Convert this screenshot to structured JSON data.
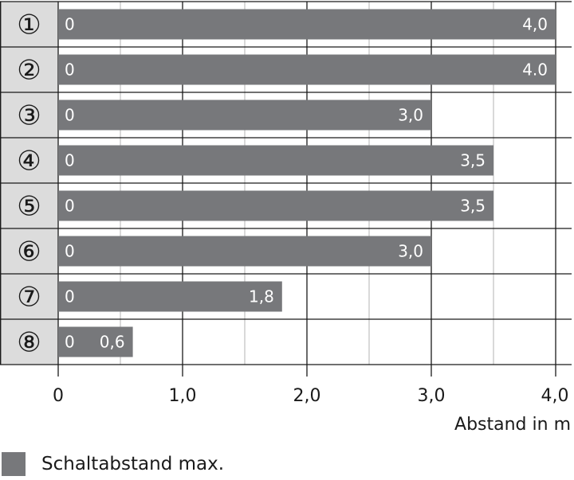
{
  "chart_data": {
    "type": "bar",
    "orientation": "horizontal",
    "categories": [
      "①",
      "②",
      "③",
      "④",
      "⑤",
      "⑥",
      "⑦",
      "⑧"
    ],
    "series": [
      {
        "name": "Schaltabstand max.",
        "values": [
          4.0,
          4.0,
          3.0,
          3.5,
          3.5,
          3.0,
          1.8,
          0.6
        ]
      }
    ],
    "bar_start_labels": [
      "0",
      "0",
      "0",
      "0",
      "0",
      "0",
      "0",
      "0"
    ],
    "bar_end_labels": [
      "4,0",
      "4.0",
      "3,0",
      "3,5",
      "3,5",
      "3,0",
      "1,8",
      "0,6"
    ],
    "x_ticks": [
      0,
      1,
      2,
      3,
      4
    ],
    "x_tick_labels": [
      "0",
      "1,0",
      "2,0",
      "3,0",
      "4,0"
    ],
    "xlim": [
      0,
      4
    ],
    "x_minor_step": 0.5,
    "xlabel": "Abstand in m",
    "grid": true,
    "legend_position": "bottom-left",
    "colors": {
      "bar": "#77787b",
      "category_column": "#dcdcdc",
      "grid": "#1a1a1a",
      "minor_grid": "#b3b3b3",
      "bar_label": "#ffffff",
      "text": "#1a1a1a"
    }
  },
  "legend": {
    "label": "Schaltabstand max."
  }
}
